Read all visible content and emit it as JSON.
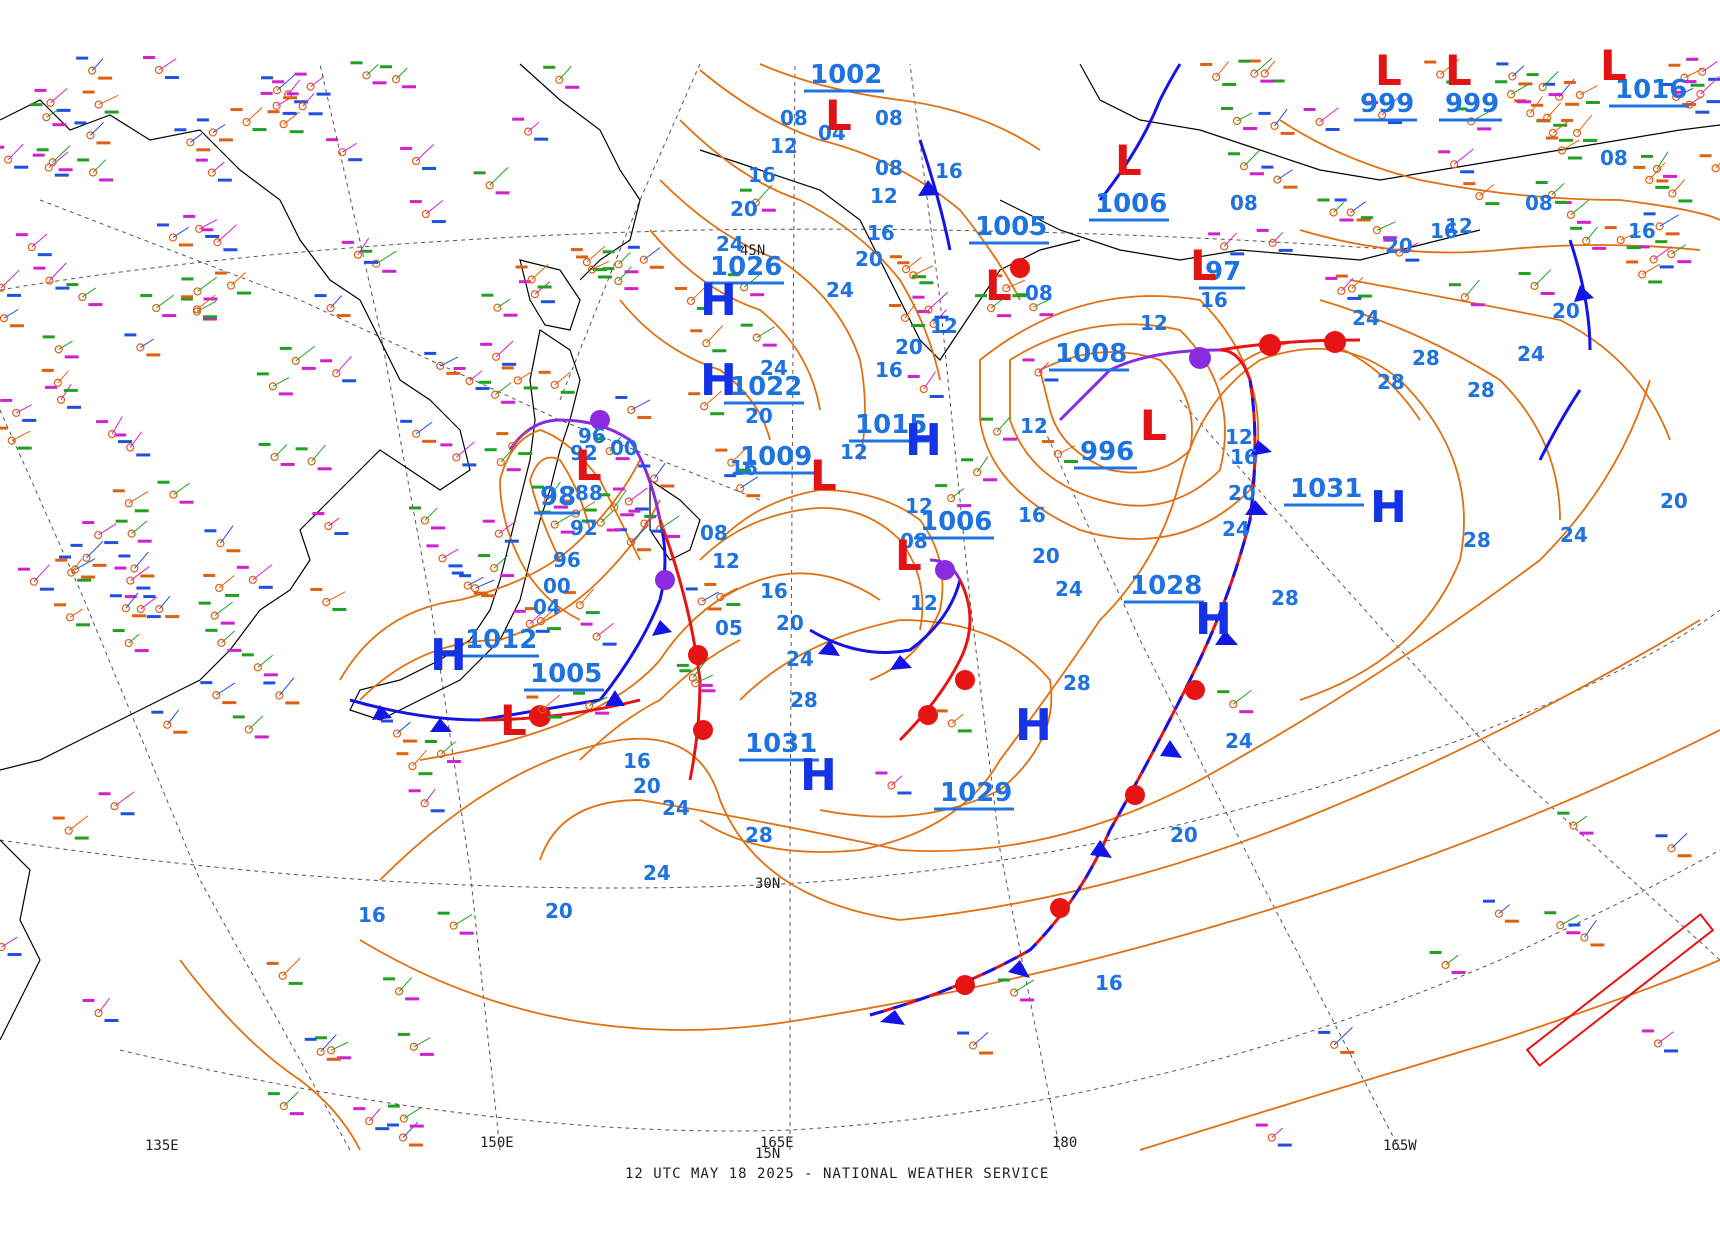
{
  "map": {
    "footer": "12 UTC MAY 18 2025 - NATIONAL WEATHER SERVICE",
    "colors": {
      "isobar": "#e07010",
      "cold_front": "#1414e6",
      "warm_front": "#e61414",
      "occluded_front": "#8a2be2",
      "high": "#1432e6",
      "low": "#e01414",
      "label": "#1f73e0",
      "coast": "#000000",
      "station_green": "#20a020",
      "station_magenta": "#d020d0",
      "station_blue": "#2050e0",
      "station_orange": "#e06010"
    },
    "grid_labels": [
      {
        "id": "lon-135e",
        "text": "135E"
      },
      {
        "id": "lon-150e",
        "text": "150E"
      },
      {
        "id": "lon-165e",
        "text": "165E"
      },
      {
        "id": "lon-180",
        "text": "180"
      },
      {
        "id": "lon-165w",
        "text": "165W"
      },
      {
        "id": "lat-30n",
        "text": "30N"
      },
      {
        "id": "lat-15n",
        "text": "15N"
      },
      {
        "id": "lat-45n",
        "text": "45N"
      }
    ],
    "highs": [
      {
        "id": "high-1026",
        "symbol": "H",
        "value": "1026"
      },
      {
        "id": "high-1022",
        "symbol": "H",
        "value": "1022"
      },
      {
        "id": "high-1015",
        "symbol": "H",
        "value": "1015"
      },
      {
        "id": "high-1012",
        "symbol": "H",
        "value": "1012"
      },
      {
        "id": "high-1031-w",
        "symbol": "H",
        "value": "1031"
      },
      {
        "id": "high-1029",
        "symbol": "H",
        "value": "1029"
      },
      {
        "id": "high-1028",
        "symbol": "H",
        "value": "1028"
      },
      {
        "id": "high-1031-e",
        "symbol": "H",
        "value": "1031"
      }
    ],
    "lows": [
      {
        "id": "low-1002",
        "symbol": "L",
        "value": "1002"
      },
      {
        "id": "low-1006-n",
        "symbol": "L",
        "value": "1006"
      },
      {
        "id": "low-1005-n",
        "symbol": "L",
        "value": "1005"
      },
      {
        "id": "low-1008",
        "symbol": "L",
        "value": "1008"
      },
      {
        "id": "low-996",
        "symbol": "L",
        "value": "996"
      },
      {
        "id": "low-1006-s",
        "symbol": "L",
        "value": "1006"
      },
      {
        "id": "low-1009",
        "symbol": "L",
        "value": "1009"
      },
      {
        "id": "low-1005-w",
        "symbol": "L",
        "value": "1005"
      },
      {
        "id": "low-98",
        "symbol": "L",
        "value": "98"
      },
      {
        "id": "low-999-a",
        "symbol": "L",
        "value": "999"
      },
      {
        "id": "low-999-b",
        "symbol": "L",
        "value": "999"
      },
      {
        "id": "low-1016",
        "symbol": "L",
        "value": "1016"
      },
      {
        "id": "low-97",
        "symbol": "L",
        "value": "97"
      }
    ],
    "isobar_labels": [
      {
        "id": "iso-08-a",
        "text": "08"
      },
      {
        "id": "iso-12-a",
        "text": "12"
      },
      {
        "id": "iso-16-a",
        "text": "16"
      },
      {
        "id": "iso-20-a",
        "text": "20"
      },
      {
        "id": "iso-24-a",
        "text": "24"
      },
      {
        "id": "iso-28-a",
        "text": "28"
      },
      {
        "id": "iso-04-a",
        "text": "04"
      },
      {
        "id": "iso-00-a",
        "text": "00"
      },
      {
        "id": "iso-96-a",
        "text": "96"
      },
      {
        "id": "iso-92-a",
        "text": "92"
      },
      {
        "id": "iso-88-a",
        "text": "88"
      },
      {
        "id": "iso-05-a",
        "text": "05"
      }
    ]
  }
}
